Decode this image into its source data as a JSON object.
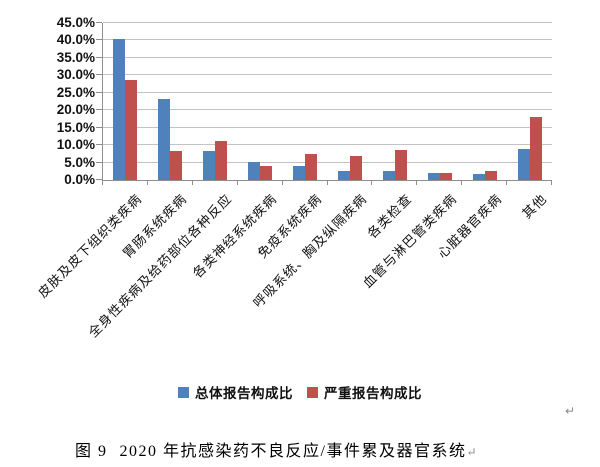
{
  "chart_data": {
    "type": "bar",
    "title": "",
    "categories": [
      "皮肤及皮下组织类疾病",
      "胃肠系统疾病",
      "全身性疾病及给药部位各种反应",
      "各类神经系统疾病",
      "免疫系统疾病",
      "呼吸系统、胸及纵隔疾病",
      "各类检查",
      "血管与淋巴管类疾病",
      "心脏器官疾病",
      "其他"
    ],
    "series": [
      {
        "name": "总体报告构成比",
        "color": "#4F81BD",
        "values": [
          40.3,
          23.1,
          8.4,
          5.2,
          4.0,
          2.7,
          2.6,
          2.0,
          1.7,
          8.8
        ]
      },
      {
        "name": "严重报告构成比",
        "color": "#C0504D",
        "values": [
          28.8,
          8.4,
          11.1,
          4.0,
          7.4,
          7.0,
          8.5,
          2.0,
          2.6,
          18.1
        ]
      }
    ],
    "ylabel": "",
    "xlabel": "",
    "ylim": [
      0,
      45
    ],
    "ytick_step": 5,
    "ytick_labels": [
      "0.0%",
      "5.0%",
      "10.0%",
      "15.0%",
      "20.0%",
      "25.0%",
      "30.0%",
      "35.0%",
      "40.0%",
      "45.0%"
    ],
    "grid": true,
    "legend_position": "bottom"
  },
  "legend": {
    "entries": [
      "总体报告构成比",
      "严重报告构成比"
    ]
  },
  "caption": {
    "figure_label": "图 9",
    "text": "2020 年抗感染药不良反应/事件累及器官系统",
    "paragraph_mark": "↵"
  },
  "page": {
    "stray_paragraph_mark": "↵"
  },
  "colors": {
    "series_blue": "#4F81BD",
    "series_red": "#C0504D",
    "gridline": "#C3C3C3",
    "axis": "#8E8E8E",
    "text": "#111111",
    "paragraph_mark": "#8A8A8A"
  }
}
